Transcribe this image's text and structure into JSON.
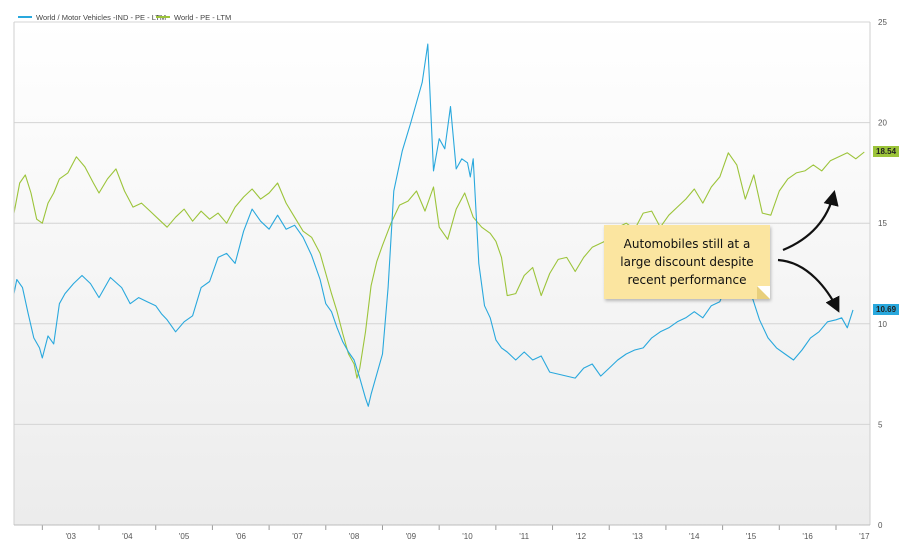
{
  "chart_data": {
    "type": "line",
    "ylim": [
      0,
      25
    ],
    "y_ticks": [
      "0",
      "5",
      "10",
      "15",
      "20",
      "25"
    ],
    "x_ticks": [
      "'03",
      "'04",
      "'05",
      "'06",
      "'07",
      "'08",
      "'09",
      "'10",
      "'11",
      "'12",
      "'13",
      "'14",
      "'15",
      "'16",
      "'17"
    ],
    "x_range": [
      2002.5,
      2017.6
    ],
    "grid": true,
    "legend": "top-left",
    "series": [
      {
        "name": "World / Motor Vehicles -IND - PE - LTM",
        "color": "#29a8dd",
        "x": [
          2002.5,
          2002.55,
          2002.65,
          2002.75,
          2002.85,
          2002.95,
          2003.0,
          2003.1,
          2003.2,
          2003.3,
          2003.4,
          2003.55,
          2003.7,
          2003.85,
          2004.0,
          2004.2,
          2004.4,
          2004.55,
          2004.7,
          2004.85,
          2005.0,
          2005.1,
          2005.2,
          2005.35,
          2005.5,
          2005.65,
          2005.8,
          2005.95,
          2006.1,
          2006.25,
          2006.4,
          2006.55,
          2006.7,
          2006.85,
          2007.0,
          2007.15,
          2007.3,
          2007.45,
          2007.6,
          2007.75,
          2007.9,
          2008.0,
          2008.1,
          2008.2,
          2008.3,
          2008.4,
          2008.5,
          2008.6,
          2008.7,
          2008.75,
          2008.8,
          2008.9,
          2009.0,
          2009.1,
          2009.2,
          2009.35,
          2009.5,
          2009.6,
          2009.7,
          2009.8,
          2009.9,
          2010.0,
          2010.1,
          2010.2,
          2010.3,
          2010.4,
          2010.5,
          2010.55,
          2010.6,
          2010.7,
          2010.8,
          2010.9,
          2011.0,
          2011.1,
          2011.2,
          2011.35,
          2011.5,
          2011.65,
          2011.8,
          2011.95,
          2012.1,
          2012.25,
          2012.4,
          2012.55,
          2012.7,
          2012.85,
          2013.0,
          2013.15,
          2013.3,
          2013.45,
          2013.6,
          2013.75,
          2013.9,
          2014.05,
          2014.2,
          2014.35,
          2014.5,
          2014.65,
          2014.8,
          2014.95,
          2015.05,
          2015.2,
          2015.35,
          2015.5,
          2015.65,
          2015.8,
          2015.95,
          2016.1,
          2016.25,
          2016.4,
          2016.55,
          2016.7,
          2016.85,
          2017.0,
          2017.1,
          2017.2,
          2017.3
        ],
        "values": [
          11.5,
          12.2,
          11.8,
          10.5,
          9.3,
          8.8,
          8.3,
          9.4,
          9.0,
          11.0,
          11.5,
          12.0,
          12.4,
          12.0,
          11.3,
          12.3,
          11.8,
          11.0,
          11.3,
          11.1,
          10.9,
          10.5,
          10.2,
          9.6,
          10.1,
          10.4,
          11.8,
          12.1,
          13.3,
          13.5,
          13.0,
          14.6,
          15.7,
          15.1,
          14.7,
          15.4,
          14.7,
          14.9,
          14.3,
          13.4,
          12.2,
          11.0,
          10.6,
          9.8,
          9.1,
          8.6,
          8.2,
          7.3,
          6.3,
          5.9,
          6.5,
          7.5,
          8.5,
          11.8,
          16.6,
          18.6,
          20.0,
          21.0,
          22.0,
          23.9,
          17.6,
          19.2,
          18.7,
          20.8,
          17.7,
          18.2,
          18.0,
          17.3,
          18.2,
          13.0,
          10.9,
          10.3,
          9.2,
          8.8,
          8.6,
          8.2,
          8.6,
          8.2,
          8.4,
          7.6,
          7.5,
          7.4,
          7.3,
          7.8,
          8.0,
          7.4,
          7.8,
          8.2,
          8.5,
          8.7,
          8.8,
          9.3,
          9.6,
          9.8,
          10.1,
          10.3,
          10.6,
          10.3,
          10.9,
          11.1,
          11.8,
          12.0,
          11.7,
          11.5,
          10.2,
          9.3,
          8.8,
          8.5,
          8.2,
          8.7,
          9.3,
          9.6,
          10.1,
          10.2,
          10.3,
          9.8,
          10.69
        ]
      },
      {
        "name": "World - PE - LTM",
        "color": "#9cc43a",
        "x": [
          2002.5,
          2002.6,
          2002.7,
          2002.8,
          2002.9,
          2003.0,
          2003.1,
          2003.2,
          2003.3,
          2003.45,
          2003.6,
          2003.75,
          2003.9,
          2004.0,
          2004.15,
          2004.3,
          2004.45,
          2004.6,
          2004.75,
          2004.9,
          2005.05,
          2005.2,
          2005.35,
          2005.5,
          2005.65,
          2005.8,
          2005.95,
          2006.1,
          2006.25,
          2006.4,
          2006.55,
          2006.7,
          2006.85,
          2007.0,
          2007.15,
          2007.3,
          2007.45,
          2007.6,
          2007.75,
          2007.9,
          2008.0,
          2008.1,
          2008.2,
          2008.3,
          2008.4,
          2008.5,
          2008.55,
          2008.6,
          2008.7,
          2008.8,
          2008.9,
          2009.0,
          2009.15,
          2009.3,
          2009.45,
          2009.6,
          2009.75,
          2009.9,
          2010.0,
          2010.15,
          2010.3,
          2010.45,
          2010.6,
          2010.75,
          2010.9,
          2011.0,
          2011.1,
          2011.2,
          2011.35,
          2011.5,
          2011.65,
          2011.8,
          2011.95,
          2012.1,
          2012.25,
          2012.4,
          2012.55,
          2012.7,
          2012.85,
          2013.0,
          2013.15,
          2013.3,
          2013.45,
          2013.6,
          2013.75,
          2013.9,
          2014.05,
          2014.2,
          2014.35,
          2014.5,
          2014.65,
          2014.8,
          2014.95,
          2015.1,
          2015.25,
          2015.4,
          2015.55,
          2015.7,
          2015.85,
          2016.0,
          2016.15,
          2016.3,
          2016.45,
          2016.6,
          2016.75,
          2016.9,
          2017.05,
          2017.2,
          2017.35,
          2017.5
        ],
        "values": [
          15.5,
          17.0,
          17.4,
          16.5,
          15.2,
          15.0,
          16.0,
          16.5,
          17.2,
          17.5,
          18.3,
          17.8,
          17.0,
          16.5,
          17.2,
          17.7,
          16.6,
          15.8,
          16.0,
          15.6,
          15.2,
          14.8,
          15.3,
          15.7,
          15.1,
          15.6,
          15.2,
          15.5,
          15.0,
          15.8,
          16.3,
          16.7,
          16.2,
          16.5,
          17.0,
          16.0,
          15.3,
          14.6,
          14.3,
          13.5,
          12.5,
          11.5,
          10.6,
          9.5,
          8.5,
          8.0,
          7.3,
          7.8,
          9.6,
          11.9,
          13.1,
          13.9,
          15.0,
          15.9,
          16.1,
          16.6,
          15.6,
          16.8,
          14.8,
          14.2,
          15.7,
          16.5,
          15.3,
          14.8,
          14.5,
          14.1,
          13.3,
          11.4,
          11.5,
          12.4,
          12.8,
          11.4,
          12.5,
          13.2,
          13.3,
          12.6,
          13.3,
          13.8,
          14.0,
          14.2,
          14.8,
          15.0,
          14.7,
          15.5,
          15.6,
          14.8,
          15.4,
          15.8,
          16.2,
          16.7,
          16.0,
          16.8,
          17.3,
          18.5,
          17.9,
          16.2,
          17.4,
          15.5,
          15.4,
          16.6,
          17.2,
          17.5,
          17.6,
          17.9,
          17.6,
          18.1,
          18.3,
          18.5,
          18.2,
          18.54
        ]
      }
    ],
    "last_values": {
      "motor": "10.69",
      "world": "18.54"
    },
    "annotation": "Automobiles still at a large discount despite recent performance"
  }
}
